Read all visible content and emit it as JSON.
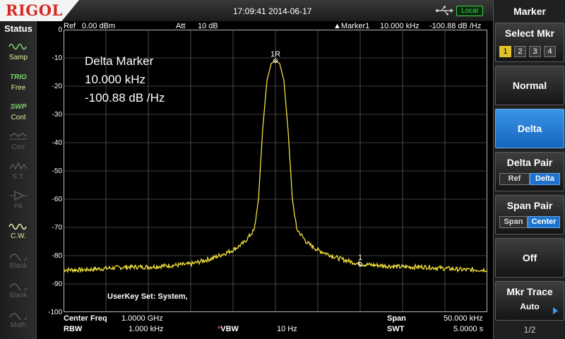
{
  "top": {
    "brand": "RIGOL",
    "datetime": "17:09:41  2014-06-17",
    "local_badge": "Local",
    "icons": [
      "usb-icon"
    ]
  },
  "status": {
    "title": "Status",
    "items": [
      {
        "name": "samp",
        "icon": "sine-wave-icon",
        "label": "Samp",
        "active": true
      },
      {
        "name": "trig",
        "icon_text": "TRIG",
        "label": "Free",
        "active": true
      },
      {
        "name": "swp",
        "icon_text": "SWP",
        "label": "Cont",
        "active": true
      },
      {
        "name": "corr",
        "icon": "corr-icon",
        "label": "Corr",
        "active": false
      },
      {
        "name": "st",
        "icon": "st-icon",
        "label": "S.T.",
        "active": false
      },
      {
        "name": "pa",
        "icon": "pa-icon",
        "label": "PA",
        "active": false
      },
      {
        "name": "cw",
        "icon": "cw-icon",
        "label": "C.W.",
        "active": true
      },
      {
        "name": "blank1",
        "icon": "blank-icon",
        "label": "Blank",
        "active": false
      },
      {
        "name": "blank2",
        "icon": "blank-icon",
        "label": "Blank",
        "active": false
      },
      {
        "name": "math",
        "icon": "math-icon",
        "label": "Math",
        "active": false
      }
    ]
  },
  "plot": {
    "ref_label": "Ref",
    "ref_value": "0.00 dBm",
    "att_label": "Att",
    "att_value": "10 dB",
    "marker_label": "▲Marker1",
    "marker_freq": "10.000 kHz",
    "marker_level": "-100.88 dB /Hz",
    "y_ticks": [
      "0",
      "-10",
      "-20",
      "-30",
      "-40",
      "-50",
      "-60",
      "-70",
      "-80",
      "-90",
      "-100"
    ],
    "marker_ref_label": "1R",
    "marker_delta_label": "1",
    "delta_box": {
      "line1": "Delta Marker",
      "line2": "10.000 kHz",
      "line3": "-100.88 dB /Hz"
    },
    "userkey": "UserKey Set:    System,",
    "footer": {
      "center_label": "Center Freq",
      "center_value": "1.0000 GHz",
      "span_label": "Span",
      "span_value": "50.000 kHz",
      "rbw_label": "RBW",
      "rbw_value": "1.000 kHz",
      "vbw_star": "*",
      "vbw_label": "VBW",
      "vbw_value": "10 Hz",
      "swt_label": "SWT",
      "swt_value": "5.0000 s"
    },
    "trace_color": "#f3e23a",
    "grid_color": "#7a7a7a"
  },
  "chart_data": {
    "type": "line",
    "ylim": [
      -100,
      0
    ],
    "y_ticks": [
      0,
      -10,
      -20,
      -30,
      -40,
      -50,
      -60,
      -70,
      -80,
      -90,
      -100
    ],
    "x_divisions": 10,
    "grid": true,
    "center_freq_ghz": 1.0,
    "span_khz": 50,
    "series": [
      {
        "x_div": [
          0,
          0.5,
          1,
          1.5,
          2,
          2.5,
          3,
          3.5,
          4,
          4.25,
          4.5,
          4.6,
          4.7,
          4.8,
          4.9,
          5.0,
          5.1,
          5.2,
          5.3,
          5.4,
          5.5,
          5.75,
          6,
          6.5,
          7,
          7.5,
          8,
          8.5,
          9,
          9.5,
          10
        ],
        "y_dbm": [
          -85,
          -85,
          -84.5,
          -84,
          -84,
          -83.5,
          -83,
          -81,
          -78,
          -75.5,
          -71,
          -60,
          -35,
          -18,
          -12,
          -11,
          -12,
          -18,
          -36,
          -60,
          -70.5,
          -75.5,
          -78,
          -81,
          -83,
          -83.5,
          -84,
          -84,
          -84.5,
          -85,
          -85
        ]
      }
    ],
    "markers": [
      {
        "label": "1R",
        "x_div": 5.0,
        "y_dbm": -11
      },
      {
        "label": "1",
        "x_div": 7.0,
        "y_dbm": -83
      }
    ]
  },
  "menu": {
    "title": "Marker",
    "select_mkr": {
      "label": "Select Mkr",
      "options": [
        "1",
        "2",
        "3",
        "4"
      ],
      "selected": 0
    },
    "normal": "Normal",
    "delta": "Delta",
    "delta_pair": {
      "label": "Delta Pair",
      "options": [
        "Ref",
        "Delta"
      ],
      "selected": 1
    },
    "span_pair": {
      "label": "Span Pair",
      "options": [
        "Span",
        "Center"
      ],
      "selected": 1
    },
    "off": "Off",
    "mkr_trace": {
      "label": "Mkr Trace",
      "value": "Auto"
    },
    "page": "1/2",
    "active_color": "#2a80d8"
  }
}
